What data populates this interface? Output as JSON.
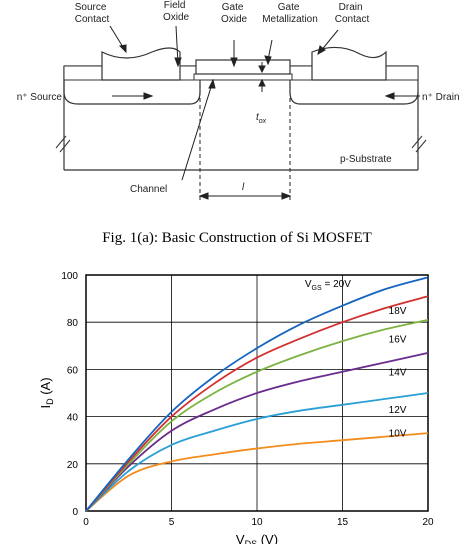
{
  "diagram": {
    "labels": {
      "source_contact": [
        "Source",
        "Contact"
      ],
      "field_oxide": [
        "Field",
        "Oxide"
      ],
      "gate_oxide": [
        "Gate",
        "Oxide"
      ],
      "gate_metallization": [
        "Gate",
        "Metallization"
      ],
      "drain_contact": [
        "Drain",
        "Contact"
      ],
      "n_source": "n⁺ Source",
      "n_drain": "n⁺ Drain",
      "tox_main": "t",
      "tox_sub": "ox",
      "p_substrate": "p-Substrate",
      "channel": "Channel",
      "length": "l"
    },
    "caption": "Fig. 1(a): Basic Construction of Si MOSFET"
  },
  "chart_data": {
    "type": "line",
    "xlabel_main": "V",
    "xlabel_sub": "DS",
    "xlabel_unit": " (V)",
    "ylabel_main": "I",
    "ylabel_sub": "D",
    "ylabel_unit": " (A)",
    "xlim": [
      0,
      20
    ],
    "ylim": [
      0,
      100
    ],
    "xticks": [
      0,
      5,
      10,
      15,
      20
    ],
    "yticks": [
      0,
      20,
      40,
      60,
      80,
      100
    ],
    "grid": true,
    "x": [
      0,
      2.5,
      5,
      7.5,
      10,
      12.5,
      15,
      17.5,
      20
    ],
    "series": [
      {
        "name": "10V",
        "label_main": "10V",
        "color": "#f28c1c",
        "values": [
          0,
          15,
          21,
          24,
          26.5,
          28.5,
          30,
          31.5,
          33
        ]
      },
      {
        "name": "12V",
        "label_main": "12V",
        "color": "#2a9fd6",
        "values": [
          0,
          17,
          28,
          34,
          39,
          42.5,
          45,
          47.5,
          50
        ]
      },
      {
        "name": "14V",
        "label_main": "14V",
        "color": "#6a2c8e",
        "values": [
          0,
          19,
          34,
          43,
          50,
          55,
          59,
          63,
          67
        ]
      },
      {
        "name": "16V",
        "label_main": "16V",
        "color": "#7cb342",
        "values": [
          0,
          20,
          38,
          50,
          59,
          66,
          72,
          77,
          81
        ]
      },
      {
        "name": "18V",
        "label_main": "18V",
        "color": "#d32f2f",
        "values": [
          0,
          21,
          40,
          54,
          65,
          73,
          80,
          86,
          91
        ]
      },
      {
        "name": "V_GS = 20V",
        "label_main": "V",
        "label_sub": "GS",
        "label_rest": " = 20V",
        "color": "#1565c0",
        "values": [
          0,
          22,
          42,
          57,
          69,
          79,
          87,
          94,
          99
        ]
      }
    ],
    "label_values": {
      "10V": 31.5,
      "12V": 41.5,
      "14V": 57.5,
      "16V": 71.5,
      "18V": 83.5,
      "V_GS = 20V": 95
    }
  }
}
